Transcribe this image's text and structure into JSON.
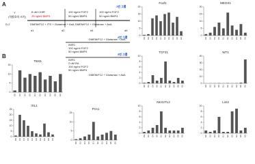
{
  "panel_labels": [
    "A",
    "B"
  ],
  "protocol_a": {
    "group": "1번 그룹",
    "cell": "Y",
    "cell_note": "(석창호의 크기)",
    "start": "D-2",
    "step1": [
      "8 uM CHIR",
      "25 ng/ml BMP4"
    ],
    "step2": [
      "100 ng/ml FGF2",
      "50 ng/ml BMP4"
    ],
    "step3": [
      "100 ng/ml FGF2",
      "50 ng/ml BMP4"
    ],
    "medium1": "DMEM/F12 + ITS + Glutamax + AsA",
    "medium2": "DMEM/F12 + Glutamax + AsA",
    "days": [
      "d1",
      "d2",
      "d4",
      "d6"
    ]
  },
  "protocol_b": {
    "medium_top": "DMEM/F12 + Glutamax + AsA",
    "medium_bottom": "DMEM/F12 + Glutamax + AsA",
    "groups": [
      {
        "label": "2번 그룹",
        "factors": [
          "IWR1",
          "100 ng/ml FGF2",
          "50 ng/ml BMP4"
        ]
      },
      {
        "label": "3번 그룹",
        "factors": [
          "IWR1",
          "2 uM RA",
          "100 ng/ml FGF2",
          "50 ng/ml BMP4"
        ]
      }
    ]
  },
  "chart_data": [
    {
      "type": "bar",
      "title": "Foxf1",
      "categories": [
        "D0",
        "D2",
        "D4",
        "D6",
        "G1",
        "G2",
        "G3",
        "G4",
        "G5",
        "G6"
      ],
      "values": [
        0.5,
        1,
        12,
        14,
        10,
        15,
        16,
        9,
        13,
        3
      ],
      "color": "#555555",
      "ylim": [
        0,
        20
      ],
      "yticks": [
        0,
        5,
        10,
        15,
        20
      ]
    },
    {
      "type": "bar",
      "title": "MEOX1",
      "categories": [
        "D0",
        "D2",
        "D4",
        "D6",
        "G1",
        "G2",
        "G3",
        "G4",
        "G5",
        "G6"
      ],
      "values": [
        1,
        2,
        6,
        9,
        5,
        16,
        7,
        4,
        8,
        2
      ],
      "color": "#555555",
      "ylim": [
        0,
        20
      ],
      "yticks": [
        0,
        5,
        10,
        15,
        20
      ]
    },
    {
      "type": "bar",
      "title": "TBX6",
      "categories": [
        "D0",
        "D2",
        "D4",
        "D6",
        "G1",
        "G2",
        "G3",
        "G4",
        "G5",
        "G6"
      ],
      "values": [
        1,
        12,
        8,
        10,
        9,
        11,
        7,
        9,
        6,
        10
      ],
      "color": "#555555",
      "ylim": [
        0,
        15
      ],
      "yticks": [
        0,
        5,
        10,
        15
      ]
    },
    {
      "type": "bar",
      "title": "TCF21",
      "categories": [
        "D0",
        "D2",
        "D4",
        "D6",
        "G1",
        "G2",
        "G3",
        "G4",
        "G5",
        "G6"
      ],
      "values": [
        0.2,
        0.5,
        3,
        1,
        2,
        8,
        1,
        0.5,
        2,
        1
      ],
      "color": "#555555",
      "ylim": [
        0,
        10
      ],
      "yticks": [
        0,
        2,
        4,
        6,
        8,
        10
      ]
    },
    {
      "type": "bar",
      "title": "WT1",
      "categories": [
        "D0",
        "D2",
        "D4",
        "D6",
        "G1",
        "G2",
        "G3",
        "G4",
        "G5",
        "G6"
      ],
      "values": [
        0.1,
        0.2,
        0.3,
        0.5,
        0.2,
        0.5,
        0.3,
        0.5,
        1,
        35
      ],
      "color": "#555555",
      "ylim": [
        0,
        40
      ],
      "yticks": [
        0,
        10,
        20,
        30,
        40
      ]
    },
    {
      "type": "bar",
      "title": "ISL1",
      "categories": [
        "D0",
        "D2",
        "D4",
        "D6",
        "G1",
        "G2",
        "G3",
        "G4",
        "G5",
        "G6"
      ],
      "values": [
        1,
        20,
        15,
        10,
        5,
        3,
        2,
        12,
        4,
        2
      ],
      "color": "#555555",
      "ylim": [
        0,
        25
      ],
      "yticks": [
        0,
        5,
        10,
        15,
        20,
        25
      ]
    },
    {
      "type": "bar",
      "title": "Prrx1",
      "categories": [
        "D0",
        "D2",
        "D4",
        "D6",
        "G1",
        "G2",
        "G3",
        "G4",
        "G5",
        "G6"
      ],
      "values": [
        0.5,
        1,
        2,
        3,
        10,
        2,
        3,
        4,
        5,
        3
      ],
      "color": "#555555",
      "ylim": [
        0,
        15
      ],
      "yticks": [
        0,
        5,
        10,
        15
      ]
    },
    {
      "type": "bar",
      "title": "NKX2TL2",
      "categories": [
        "D0",
        "D2",
        "D4",
        "D6",
        "G1",
        "G2",
        "G3",
        "G4",
        "G5",
        "G6"
      ],
      "values": [
        0.5,
        1,
        2,
        3,
        8,
        2,
        1,
        1,
        1,
        2
      ],
      "color": "#555555",
      "ylim": [
        0,
        10
      ],
      "yticks": [
        0,
        2,
        4,
        6,
        8,
        10
      ]
    },
    {
      "type": "bar",
      "title": "Lim2",
      "categories": [
        "D0",
        "D2",
        "D4",
        "D6",
        "G1",
        "G2",
        "G3",
        "G4",
        "G5",
        "G6"
      ],
      "values": [
        1,
        0.5,
        1,
        6,
        0.5,
        0.5,
        8,
        9,
        1,
        2
      ],
      "color": "#555555",
      "ylim": [
        0,
        10
      ],
      "yticks": [
        0,
        2,
        4,
        6,
        8,
        10
      ]
    }
  ]
}
